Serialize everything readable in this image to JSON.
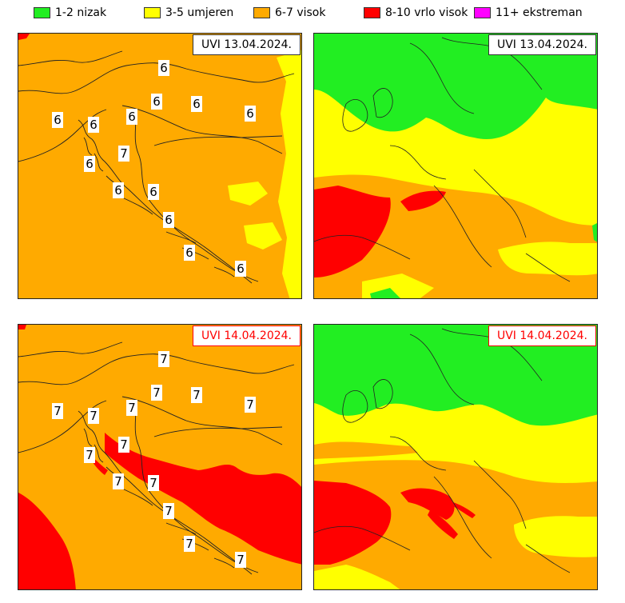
{
  "legend": [
    {
      "label": "1-2 nizak",
      "color": "#22ee22"
    },
    {
      "label": "3-5 umjeren",
      "color": "#ffff00"
    },
    {
      "label": "6-7 visok",
      "color": "#ffaa00"
    },
    {
      "label": "8-10 vrlo visok",
      "color": "#ff0000"
    },
    {
      "label": "11+ ekstreman",
      "color": "#ff00ff"
    }
  ],
  "colors": {
    "low": "#22ee22",
    "moderate": "#ffff00",
    "high": "#ffaa00",
    "very_high": "#ff0000",
    "extreme": "#ff00ff",
    "day1_label_border": "#333333",
    "day1_label_text": "#000000",
    "day2_label_border": "#ff0000",
    "day2_label_text": "#ff0000"
  },
  "panels": {
    "day1_croatia": {
      "date_label": "UVI  13.04.2024.",
      "values": [
        "6",
        "6",
        "6",
        "6",
        "6",
        "6",
        "6",
        "7",
        "6",
        "6",
        "6",
        "6",
        "6",
        "6"
      ]
    },
    "day1_europe": {
      "date_label": "UVI  13.04.2024."
    },
    "day2_croatia": {
      "date_label": "UVI  14.04.2024.",
      "values": [
        "7",
        "7",
        "7",
        "7",
        "7",
        "7",
        "7",
        "7",
        "7",
        "7",
        "7",
        "7",
        "7",
        "7"
      ]
    },
    "day2_europe": {
      "date_label": "UVI  14.04.2024."
    }
  }
}
